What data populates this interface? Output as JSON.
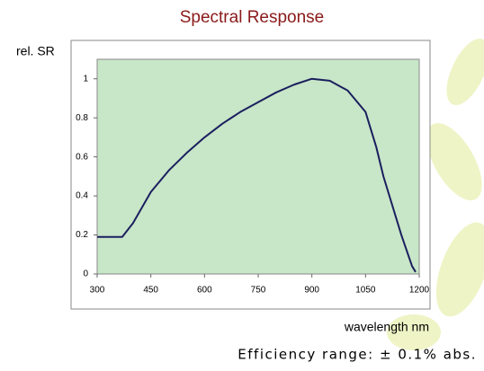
{
  "chart_data": {
    "type": "line",
    "title": "Spectral Response",
    "ylabel": "rel. SR",
    "xlabel": "wavelength nm",
    "annotation": "Efficiency range: ± 0.1% abs.",
    "x": [
      300,
      350,
      370,
      400,
      450,
      500,
      550,
      600,
      650,
      700,
      750,
      800,
      850,
      900,
      950,
      1000,
      1050,
      1080,
      1100,
      1150,
      1180,
      1190
    ],
    "series": [
      {
        "color": "#1a1f5e",
        "values": [
          0.19,
          0.19,
          0.19,
          0.26,
          0.42,
          0.53,
          0.62,
          0.7,
          0.77,
          0.83,
          0.88,
          0.93,
          0.97,
          1.0,
          0.99,
          0.94,
          0.83,
          0.65,
          0.5,
          0.2,
          0.04,
          0.01
        ]
      }
    ],
    "xlim": [
      300,
      1200
    ],
    "xticks": [
      300,
      450,
      600,
      750,
      900,
      1050,
      1200
    ],
    "ylim": [
      0,
      1.1
    ],
    "yticks": [
      0,
      0.2,
      0.4,
      0.6,
      0.8,
      1
    ],
    "plot_background": "#c8e6c8"
  }
}
